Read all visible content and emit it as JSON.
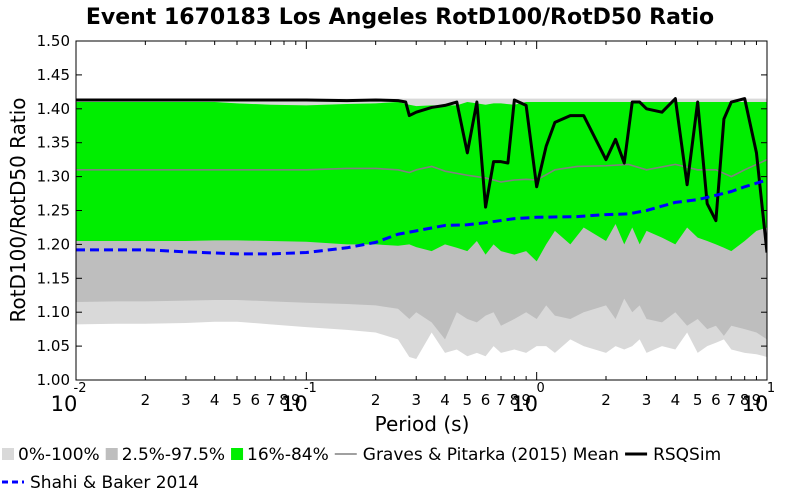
{
  "chart_data": {
    "type": "area",
    "title": "Event 1670183 Los Angeles RotD100/RotD50 Ratio",
    "xlabel": "Period (s)",
    "ylabel": "RotD100/RotD50 Ratio",
    "xscale": "log",
    "xlim": [
      0.01,
      10
    ],
    "ylim": [
      1.0,
      1.5
    ],
    "yticks": [
      "1.00",
      "1.05",
      "1.10",
      "1.15",
      "1.20",
      "1.25",
      "1.30",
      "1.35",
      "1.40",
      "1.45",
      "1.50"
    ],
    "xticks_major": [
      {
        "base": "10",
        "exp": "-2",
        "value": 0.01
      },
      {
        "base": "10",
        "exp": "-1",
        "value": 0.1
      },
      {
        "base": "10",
        "exp": "0",
        "value": 1
      },
      {
        "base": "10",
        "exp": "1",
        "value": 10
      }
    ],
    "xticks_minor_labels": [
      "2",
      "3",
      "4",
      "5",
      "6",
      "7",
      "8",
      "9"
    ],
    "grid": false,
    "legend_position": "bottom",
    "x": [
      0.01,
      0.015,
      0.02,
      0.03,
      0.04,
      0.05,
      0.07,
      0.1,
      0.15,
      0.2,
      0.25,
      0.28,
      0.3,
      0.35,
      0.4,
      0.45,
      0.5,
      0.55,
      0.6,
      0.65,
      0.7,
      0.8,
      0.9,
      1.0,
      1.1,
      1.2,
      1.4,
      1.6,
      2.0,
      2.2,
      2.4,
      2.6,
      2.8,
      3.0,
      3.5,
      4.0,
      4.5,
      5.0,
      5.5,
      6.0,
      6.5,
      7.0,
      8.0,
      9.0,
      10.0
    ],
    "bands": [
      {
        "name": "0%-100%",
        "color": "#d9d9d9",
        "lower": [
          1.082,
          1.083,
          1.083,
          1.084,
          1.086,
          1.086,
          1.082,
          1.078,
          1.074,
          1.07,
          1.06,
          1.034,
          1.031,
          1.07,
          1.04,
          1.045,
          1.035,
          1.04,
          1.035,
          1.05,
          1.04,
          1.045,
          1.04,
          1.05,
          1.05,
          1.04,
          1.06,
          1.05,
          1.04,
          1.05,
          1.045,
          1.05,
          1.06,
          1.04,
          1.05,
          1.045,
          1.07,
          1.04,
          1.05,
          1.055,
          1.06,
          1.045,
          1.04,
          1.038,
          1.034
        ],
        "upper": [
          1.415,
          1.415,
          1.415,
          1.415,
          1.415,
          1.415,
          1.415,
          1.415,
          1.415,
          1.415,
          1.415,
          1.415,
          1.415,
          1.415,
          1.415,
          1.415,
          1.415,
          1.415,
          1.415,
          1.415,
          1.415,
          1.415,
          1.415,
          1.415,
          1.415,
          1.415,
          1.415,
          1.415,
          1.415,
          1.415,
          1.415,
          1.415,
          1.415,
          1.415,
          1.415,
          1.415,
          1.415,
          1.415,
          1.415,
          1.415,
          1.415,
          1.415,
          1.415,
          1.415,
          1.415
        ]
      },
      {
        "name": "2.5%-97.5%",
        "color": "#bebebe",
        "lower": [
          1.115,
          1.116,
          1.116,
          1.117,
          1.118,
          1.118,
          1.116,
          1.114,
          1.112,
          1.11,
          1.105,
          1.09,
          1.1,
          1.085,
          1.06,
          1.1,
          1.09,
          1.085,
          1.095,
          1.1,
          1.08,
          1.09,
          1.1,
          1.09,
          1.11,
          1.095,
          1.09,
          1.1,
          1.11,
          1.09,
          1.12,
          1.1,
          1.11,
          1.09,
          1.085,
          1.1,
          1.08,
          1.09,
          1.075,
          1.08,
          1.065,
          1.08,
          1.075,
          1.07,
          1.06
        ],
        "upper": [
          1.41,
          1.41,
          1.41,
          1.41,
          1.41,
          1.408,
          1.406,
          1.405,
          1.407,
          1.408,
          1.41,
          1.406,
          1.404,
          1.405,
          1.405,
          1.405,
          1.41,
          1.408,
          1.406,
          1.408,
          1.408,
          1.406,
          1.41,
          1.41,
          1.41,
          1.41,
          1.41,
          1.41,
          1.41,
          1.41,
          1.41,
          1.41,
          1.41,
          1.41,
          1.41,
          1.41,
          1.41,
          1.41,
          1.41,
          1.41,
          1.41,
          1.41,
          1.41,
          1.41,
          1.41
        ]
      },
      {
        "name": "16%-84%",
        "color": "#00ee00",
        "lower": [
          1.205,
          1.205,
          1.205,
          1.205,
          1.206,
          1.206,
          1.205,
          1.204,
          1.2,
          1.2,
          1.198,
          1.2,
          1.196,
          1.19,
          1.2,
          1.195,
          1.19,
          1.205,
          1.185,
          1.2,
          1.19,
          1.185,
          1.19,
          1.175,
          1.2,
          1.22,
          1.2,
          1.225,
          1.205,
          1.23,
          1.2,
          1.225,
          1.2,
          1.22,
          1.21,
          1.2,
          1.225,
          1.21,
          1.205,
          1.2,
          1.195,
          1.19,
          1.205,
          1.22,
          1.225
        ],
        "upper": [
          1.41,
          1.41,
          1.41,
          1.41,
          1.41,
          1.408,
          1.406,
          1.405,
          1.407,
          1.408,
          1.41,
          1.406,
          1.404,
          1.405,
          1.405,
          1.405,
          1.41,
          1.408,
          1.406,
          1.408,
          1.408,
          1.406,
          1.41,
          1.41,
          1.41,
          1.41,
          1.41,
          1.41,
          1.41,
          1.41,
          1.41,
          1.41,
          1.41,
          1.41,
          1.41,
          1.41,
          1.41,
          1.41,
          1.41,
          1.41,
          1.41,
          1.41,
          1.41,
          1.41,
          1.41
        ]
      }
    ],
    "series": [
      {
        "name": "Graves & Pitarka (2015) Mean",
        "color": "#808080",
        "style": "solid",
        "x": [
          0.01,
          0.02,
          0.05,
          0.1,
          0.15,
          0.2,
          0.25,
          0.28,
          0.3,
          0.35,
          0.4,
          0.5,
          0.6,
          0.7,
          0.8,
          0.9,
          1.0,
          1.2,
          1.5,
          2.0,
          2.5,
          3.0,
          4.0,
          5.0,
          6.0,
          7.0,
          8.0,
          10.0
        ],
        "y": [
          1.31,
          1.31,
          1.31,
          1.31,
          1.312,
          1.312,
          1.31,
          1.306,
          1.31,
          1.315,
          1.308,
          1.302,
          1.298,
          1.292,
          1.295,
          1.296,
          1.295,
          1.31,
          1.315,
          1.316,
          1.318,
          1.31,
          1.318,
          1.31,
          1.31,
          1.3,
          1.31,
          1.325
        ]
      },
      {
        "name": "RSQSim",
        "color": "#000000",
        "style": "solid",
        "x": [
          0.01,
          0.02,
          0.05,
          0.1,
          0.15,
          0.2,
          0.25,
          0.27,
          0.28,
          0.3,
          0.35,
          0.4,
          0.45,
          0.5,
          0.55,
          0.6,
          0.65,
          0.7,
          0.75,
          0.8,
          0.9,
          1.0,
          1.1,
          1.2,
          1.4,
          1.6,
          2.0,
          2.2,
          2.4,
          2.6,
          2.8,
          3.0,
          3.5,
          4.0,
          4.5,
          5.0,
          5.5,
          6.0,
          6.5,
          7.0,
          8.0,
          9.0,
          10.0
        ],
        "y": [
          1.413,
          1.413,
          1.413,
          1.413,
          1.412,
          1.413,
          1.412,
          1.41,
          1.39,
          1.395,
          1.402,
          1.405,
          1.41,
          1.335,
          1.41,
          1.255,
          1.322,
          1.322,
          1.32,
          1.413,
          1.405,
          1.285,
          1.345,
          1.38,
          1.39,
          1.39,
          1.325,
          1.355,
          1.32,
          1.41,
          1.41,
          1.4,
          1.395,
          1.415,
          1.288,
          1.41,
          1.26,
          1.235,
          1.385,
          1.41,
          1.415,
          1.335,
          1.188
        ]
      },
      {
        "name": "Shahi & Baker 2014",
        "color": "#0000ff",
        "style": "dashed",
        "x": [
          0.01,
          0.02,
          0.03,
          0.05,
          0.07,
          0.1,
          0.15,
          0.2,
          0.25,
          0.3,
          0.4,
          0.5,
          0.6,
          0.8,
          1.0,
          1.5,
          2.0,
          2.5,
          3.0,
          4.0,
          5.0,
          7.0,
          8.0,
          10.0
        ],
        "y": [
          1.192,
          1.192,
          1.189,
          1.186,
          1.186,
          1.188,
          1.195,
          1.203,
          1.215,
          1.22,
          1.228,
          1.229,
          1.232,
          1.238,
          1.24,
          1.241,
          1.244,
          1.245,
          1.25,
          1.262,
          1.266,
          1.278,
          1.285,
          1.295
        ]
      }
    ],
    "legend": [
      {
        "label": "0%-100%",
        "kind": "patch",
        "color": "#d9d9d9"
      },
      {
        "label": "2.5%-97.5%",
        "kind": "patch",
        "color": "#bebebe"
      },
      {
        "label": "16%-84%",
        "kind": "patch",
        "color": "#00ee00"
      },
      {
        "label": "Graves & Pitarka (2015) Mean",
        "kind": "line",
        "color": "#808080",
        "dash": false
      },
      {
        "label": "RSQSim",
        "kind": "line",
        "color": "#000000",
        "dash": false
      },
      {
        "label": "Shahi & Baker 2014",
        "kind": "line",
        "color": "#0000ff",
        "dash": true
      }
    ]
  }
}
